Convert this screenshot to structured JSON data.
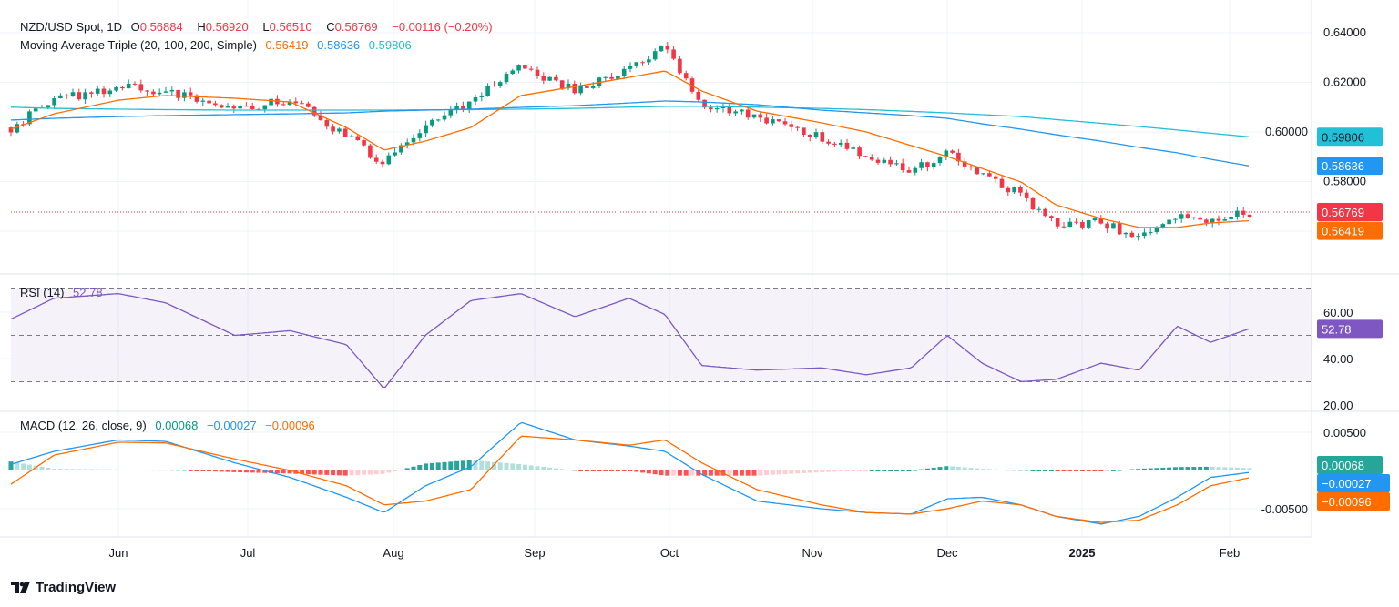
{
  "header": {
    "symbol": "NZD/USD Spot, 1D",
    "o_label": "O",
    "o": "0.56884",
    "h_label": "H",
    "h": "0.56920",
    "l_label": "L",
    "l": "0.56510",
    "c_label": "C",
    "c": "0.56769",
    "change": "−0.00116 (−0.20%)"
  },
  "ma_legend": {
    "label": "Moving Average Triple (20, 100, 200, Simple)",
    "ma20": "0.56419",
    "ma100": "0.58636",
    "ma200": "0.59806"
  },
  "rsi_legend": {
    "label": "RSI (14)",
    "value": "52.78"
  },
  "macd_legend": {
    "label": "MACD (12, 26, close, 9)",
    "hist": "0.00068",
    "macd": "−0.00027",
    "signal": "−0.00096"
  },
  "branding": "TradingView",
  "colors": {
    "up": "#089981",
    "down": "#f23645",
    "ma20": "#ff6d00",
    "ma100": "#2196f3",
    "ma200": "#22c0d6",
    "rsi": "#7e57c2",
    "macd": "#2196f3",
    "signal": "#ff6d00"
  },
  "chart_data": [
    {
      "type": "candlestick",
      "title": "NZD/USD Spot, 1D",
      "ylim": [
        0.55,
        0.64
      ],
      "y_ticks": [
        "0.64000",
        "0.62000",
        "0.60000",
        "0.58000"
      ],
      "x_ticks": [
        "Jun",
        "Jul",
        "Aug",
        "Sep",
        "Oct",
        "Nov",
        "Dec",
        "2025",
        "Feb"
      ],
      "dates": [
        "2024-05-07",
        "2024-05-17",
        "2024-06-01",
        "2024-06-12",
        "2024-06-28",
        "2024-07-10",
        "2024-07-22",
        "2024-07-30",
        "2024-08-08",
        "2024-08-18",
        "2024-08-29",
        "2024-09-10",
        "2024-09-22",
        "2024-09-30",
        "2024-10-08",
        "2024-10-20",
        "2024-11-03",
        "2024-11-13",
        "2024-11-23",
        "2024-12-01",
        "2024-12-09",
        "2024-12-18",
        "2024-12-26",
        "2025-01-05",
        "2025-01-13",
        "2025-01-21",
        "2025-01-28",
        "2025-02-05"
      ],
      "close": [
        0.6018,
        0.6128,
        0.6183,
        0.6165,
        0.6092,
        0.6128,
        0.5982,
        0.5872,
        0.6018,
        0.6128,
        0.6257,
        0.6165,
        0.6257,
        0.6349,
        0.611,
        0.6055,
        0.5982,
        0.5908,
        0.5853,
        0.5908,
        0.5835,
        0.5743,
        0.5633,
        0.5633,
        0.5571,
        0.567,
        0.5651,
        0.56769
      ],
      "series": [
        {
          "name": "MA 20",
          "values": [
            0.6011,
            0.6073,
            0.6128,
            0.6147,
            0.6136,
            0.6121,
            0.6018,
            0.5927,
            0.5963,
            0.6018,
            0.6147,
            0.6183,
            0.622,
            0.6246,
            0.6165,
            0.6084,
            0.6037,
            0.6,
            0.5945,
            0.5901,
            0.5853,
            0.5798,
            0.5706,
            0.5651,
            0.5615,
            0.5615,
            0.5633,
            0.56419
          ]
        },
        {
          "name": "MA 100",
          "values": [
            0.6048,
            0.6055,
            0.6062,
            0.6066,
            0.607,
            0.6073,
            0.6077,
            0.6084,
            0.6088,
            0.6092,
            0.6099,
            0.6106,
            0.6117,
            0.6125,
            0.6121,
            0.611,
            0.6088,
            0.6077,
            0.6066,
            0.6055,
            0.6033,
            0.6011,
            0.5989,
            0.5963,
            0.5938,
            0.5916,
            0.589,
            0.58636
          ]
        },
        {
          "name": "MA 200",
          "values": [
            0.61,
            0.6095,
            0.6092,
            0.609,
            0.6088,
            0.6088,
            0.6088,
            0.6088,
            0.6089,
            0.609,
            0.6092,
            0.6095,
            0.61,
            0.6103,
            0.6103,
            0.61,
            0.6095,
            0.609,
            0.6083,
            0.6077,
            0.607,
            0.6062,
            0.605,
            0.6035,
            0.6022,
            0.6008,
            0.5995,
            0.59806
          ]
        }
      ]
    },
    {
      "type": "line",
      "title": "RSI (14)",
      "ylim": [
        20,
        75
      ],
      "y_ticks": [
        "60.00",
        "40.00",
        "20.00"
      ],
      "bands": [
        70,
        50,
        30
      ],
      "values": [
        57,
        66,
        68,
        64,
        50,
        52,
        46,
        27,
        50,
        65,
        68,
        58,
        66,
        59,
        37,
        35,
        36,
        33,
        36,
        50,
        38,
        30,
        31,
        38,
        35,
        54,
        47,
        52.78
      ]
    },
    {
      "type": "line",
      "title": "MACD (12, 26, close, 9)",
      "ylim": [
        -0.0085,
        0.007
      ],
      "y_ticks": [
        "0.00500",
        "-0.00500"
      ],
      "series": [
        {
          "name": "MACD",
          "values": [
            0.0008,
            0.0025,
            0.004,
            0.0038,
            0.001,
            -0.0009,
            -0.0035,
            -0.0055,
            -0.002,
            0.0005,
            0.0063,
            0.004,
            0.0032,
            0.0025,
            -0.0005,
            -0.004,
            -0.005,
            -0.0055,
            -0.0057,
            -0.0037,
            -0.0035,
            -0.0045,
            -0.006,
            -0.007,
            -0.006,
            -0.0035,
            -0.0009,
            -0.00027
          ]
        },
        {
          "name": "Signal",
          "values": [
            -0.0018,
            0.002,
            0.0037,
            0.0036,
            0.0015,
            0.0,
            -0.002,
            -0.0045,
            -0.004,
            -0.0025,
            0.0045,
            0.004,
            0.0033,
            0.004,
            0.001,
            -0.0025,
            -0.0045,
            -0.0055,
            -0.0057,
            -0.005,
            -0.004,
            -0.0045,
            -0.006,
            -0.0068,
            -0.0065,
            -0.0045,
            -0.002,
            -0.00096
          ]
        }
      ]
    }
  ]
}
